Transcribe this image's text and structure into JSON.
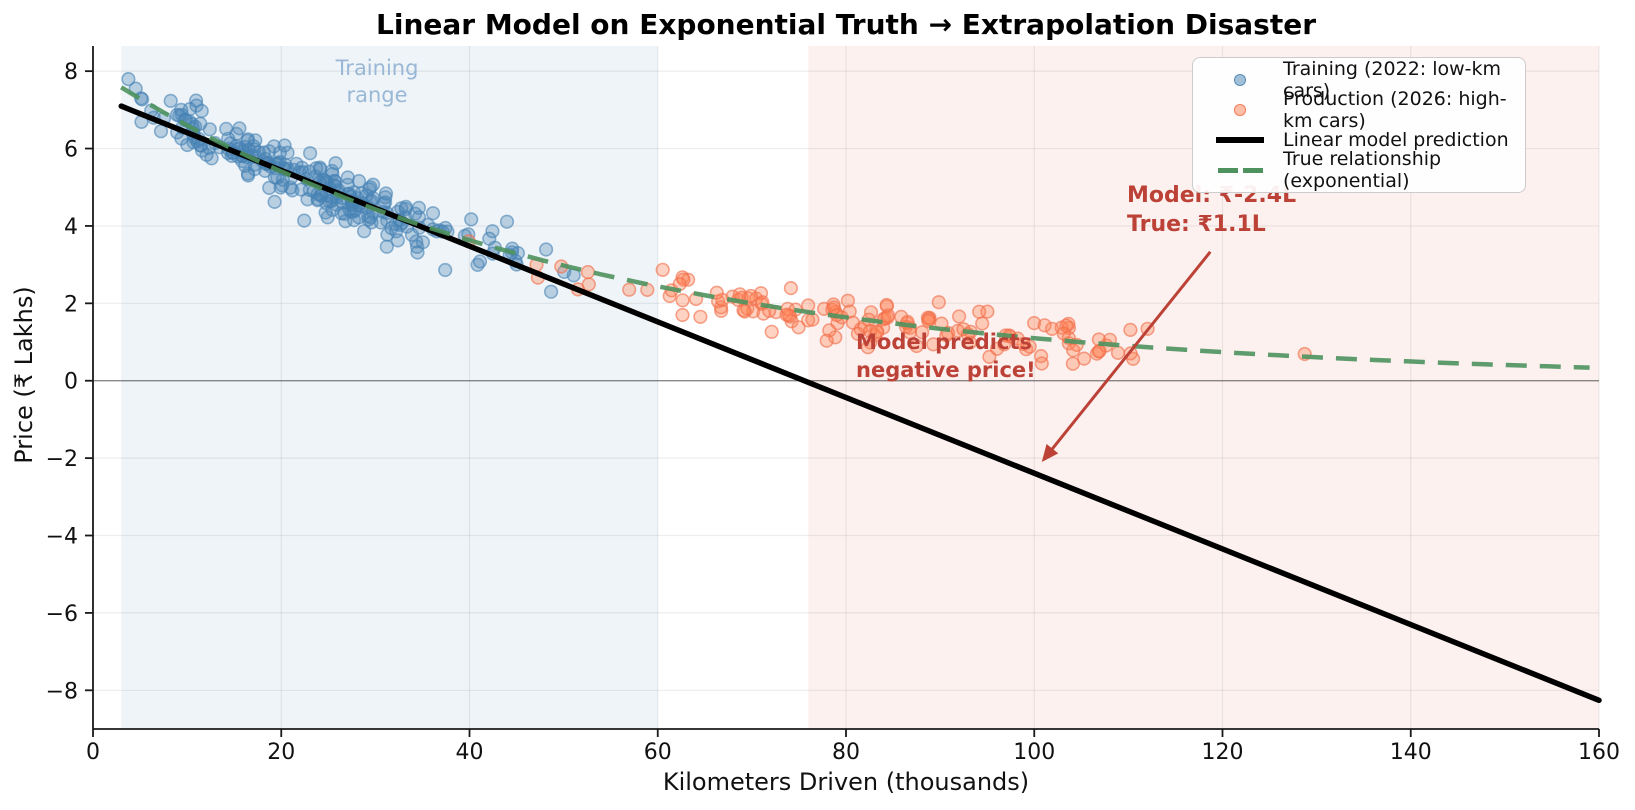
{
  "chart_data": {
    "type": "scatter",
    "title": "Linear Model on Exponential Truth → Extrapolation Disaster",
    "xlabel": "Kilometers Driven (thousands)",
    "ylabel": "Price (₹ Lakhs)",
    "xlim": [
      0,
      160
    ],
    "ylim": [
      -9.0,
      8.65
    ],
    "xticks": [
      0,
      20,
      40,
      60,
      80,
      100,
      120,
      140,
      160
    ],
    "yticks": [
      -8,
      -6,
      -4,
      -2,
      0,
      2,
      4,
      6,
      8
    ],
    "grid": true,
    "grid_color": "rgba(0,0,0,0.07)",
    "zero_line": {
      "y": 0,
      "color": "rgba(70,70,70,0.6)",
      "width": 1.4
    },
    "bands": [
      {
        "name": "training-range-band",
        "x0": 3,
        "x1": 60,
        "color": "rgba(70,130,180,0.09)"
      },
      {
        "name": "production-range-band",
        "x0": 76,
        "x1": 160,
        "color": "rgba(225,120,100,0.10)"
      }
    ],
    "series": [
      {
        "name": "Training (2022: low-km cars)",
        "kind": "scatter",
        "n": 260,
        "seed": 20221,
        "x_mean": 24,
        "x_sd": 11,
        "x_min": 3.5,
        "x_max": 59,
        "base_amplitude": 8.05,
        "base_decay": 0.0199,
        "noise_sd": 0.36,
        "fill": "rgba(70,130,180,0.32)",
        "edge": "rgba(70,130,180,0.6)"
      },
      {
        "name": "Production (2026: high-km cars)",
        "kind": "scatter",
        "n": 150,
        "seed": 20262,
        "x_mean": 85,
        "x_sd": 17,
        "x_min": 31,
        "x_max": 133,
        "base_amplitude": 8.05,
        "base_decay": 0.0199,
        "noise_sd": 0.29,
        "fill": "rgba(255,127,80,0.34)",
        "edge": "rgba(240,110,75,0.62)"
      },
      {
        "name": "Linear model prediction",
        "kind": "line",
        "intercept": 7.39,
        "slope": -0.0978,
        "x_start": 3,
        "x_end": 160,
        "color": "#000000",
        "width": 5.5
      },
      {
        "name": "True relationship (exponential)",
        "kind": "exp",
        "amplitude": 8.05,
        "decay": 0.0199,
        "x_start": 3,
        "x_end": 160,
        "color": "rgba(78,146,94,0.9)",
        "width": 4.5,
        "dash": "21 13"
      }
    ],
    "annotations": {
      "training_range": {
        "lines": [
          "Training",
          "range"
        ],
        "color": "#9ab8d6"
      },
      "model_true": {
        "lines": [
          "Model: ₹-2.4L",
          "True: ₹1.1L"
        ],
        "color": "#bc4136",
        "arrow": {
          "tail": [
            118.7,
            3.33
          ],
          "tip": [
            100.8,
            -2.1
          ],
          "color": "#bc4136",
          "width": 3
        }
      },
      "negative_price": {
        "lines": [
          "Model predicts",
          "negative price!"
        ],
        "color": "#bc4136"
      }
    },
    "legend": {
      "position": "upper right",
      "entries": [
        {
          "label": "Training (2022: low-km cars)",
          "marker": "dot",
          "fill": "rgba(70,130,180,0.5)",
          "edge": "rgba(70,130,180,0.85)"
        },
        {
          "label": "Production (2026: high-km cars)",
          "marker": "dot",
          "fill": "rgba(255,127,80,0.5)",
          "edge": "rgba(240,110,75,0.85)"
        },
        {
          "label": "Linear model prediction",
          "marker": "solid-line",
          "color": "#000000"
        },
        {
          "label": "True relationship (exponential)",
          "marker": "dashed-line",
          "color": "#4e9260"
        }
      ]
    }
  }
}
